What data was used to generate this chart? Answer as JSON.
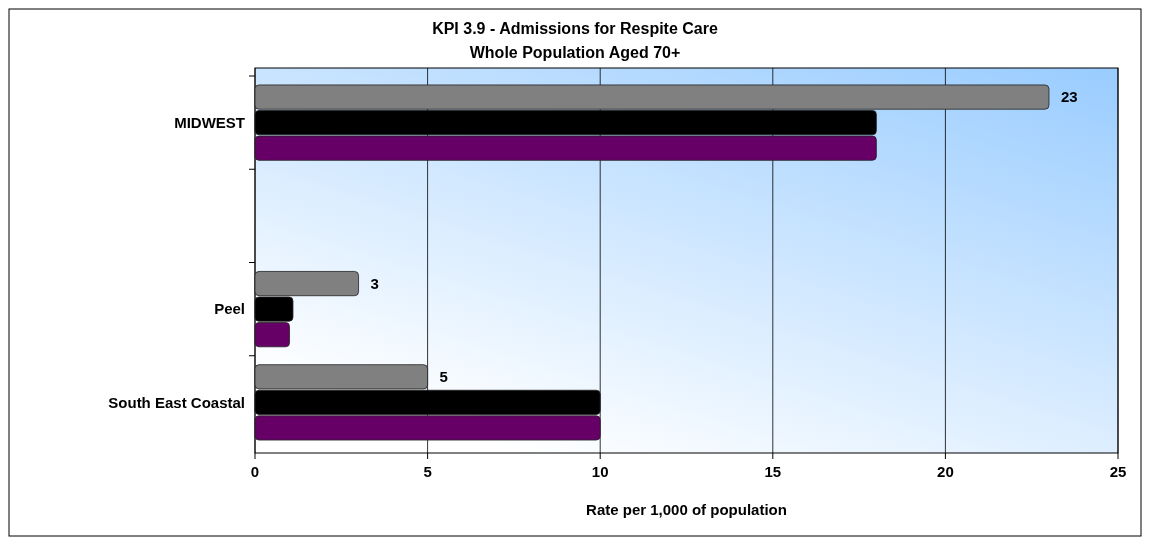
{
  "chart_data": {
    "type": "bar",
    "orientation": "horizontal",
    "title": "KPI 3.9 - Admissions for Respite Care",
    "subtitle": "Whole Population Aged 70+",
    "xlabel": "Rate per 1,000 of population",
    "categories": [
      "MIDWEST",
      null,
      "Peel",
      "South East Coastal"
    ],
    "series": [
      {
        "color": "#808080",
        "values": [
          23,
          null,
          3,
          5
        ],
        "value_labels": [
          "23",
          null,
          "3",
          "5"
        ]
      },
      {
        "color": "#000000",
        "values": [
          18,
          null,
          1.1,
          10
        ]
      },
      {
        "color": "#660066",
        "values": [
          18,
          null,
          1,
          10
        ]
      }
    ],
    "xlim": [
      0,
      25
    ],
    "xticks": [
      0,
      5,
      10,
      15,
      20,
      25
    ],
    "grid": "x"
  }
}
